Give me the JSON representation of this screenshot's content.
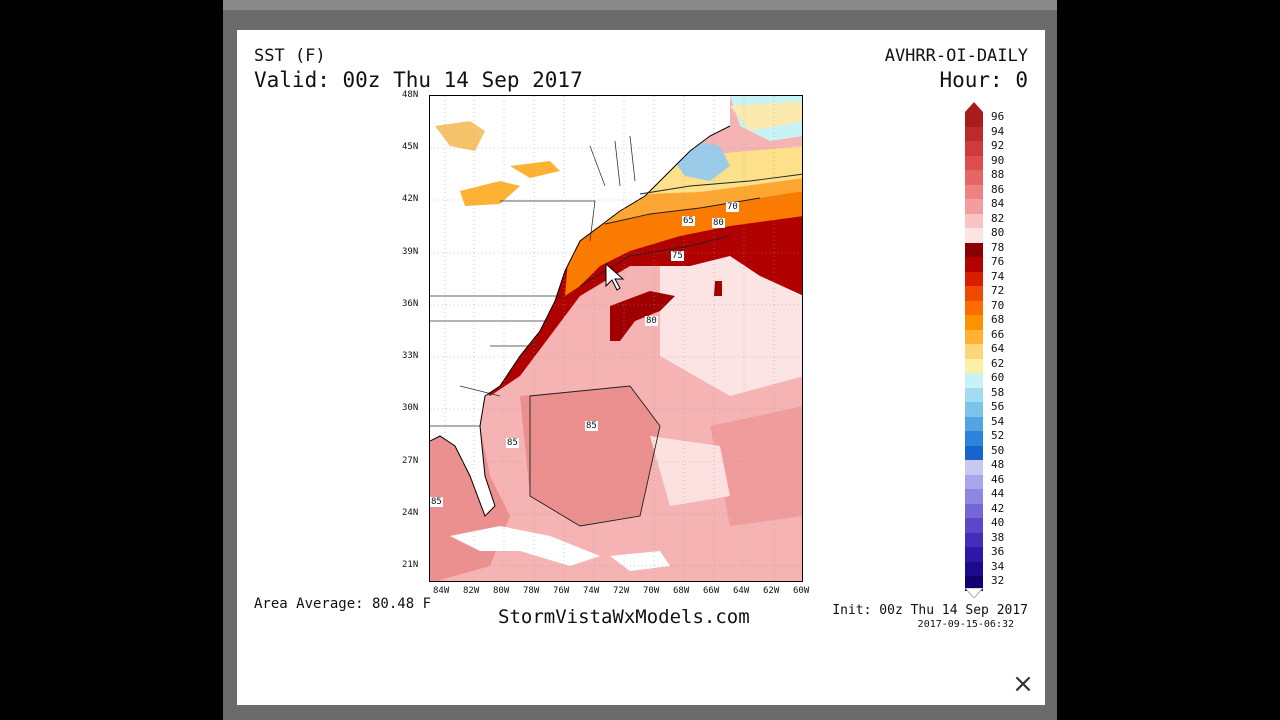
{
  "header": {
    "left_line1": "SST (F)",
    "left_line2": "Valid: 00z Thu 14 Sep 2017",
    "right_line1": "AVHRR-OI-DAILY",
    "right_line2": "Hour: 0"
  },
  "map": {
    "lat_labels": [
      "48N",
      "45N",
      "42N",
      "39N",
      "36N",
      "33N",
      "30N",
      "27N",
      "24N",
      "21N"
    ],
    "lon_labels": [
      "84W",
      "82W",
      "80W",
      "78W",
      "76W",
      "74W",
      "72W",
      "70W",
      "68W",
      "66W",
      "64W",
      "62W",
      "60W"
    ],
    "contour_labels": [
      "70",
      "65",
      "80",
      "75",
      "80",
      "85",
      "85",
      "85"
    ]
  },
  "colorbar": {
    "levels": [
      "96",
      "94",
      "92",
      "90",
      "88",
      "86",
      "84",
      "82",
      "80",
      "78",
      "76",
      "74",
      "72",
      "70",
      "68",
      "66",
      "64",
      "62",
      "60",
      "58",
      "56",
      "54",
      "52",
      "50",
      "48",
      "46",
      "44",
      "42",
      "40",
      "38",
      "36",
      "34",
      "32"
    ],
    "colors": [
      "#a81c1c",
      "#bc2a2a",
      "#cf3b3b",
      "#dd4e4e",
      "#e46666",
      "#ec8282",
      "#f29e9e",
      "#f7c3c3",
      "#fde4e4",
      "#8a0000",
      "#b50000",
      "#d91e00",
      "#f04a00",
      "#fb6d00",
      "#fd9200",
      "#fdb233",
      "#fdd67a",
      "#fbf0a6",
      "#c9f2f5",
      "#a3dcf0",
      "#7cc3ec",
      "#54a4e4",
      "#2d83db",
      "#1665cf",
      "#c8c8f3",
      "#aaa6ec",
      "#8f86e2",
      "#7566d6",
      "#5b48c9",
      "#432dba",
      "#2d17a6",
      "#1c0a8c",
      "#120070"
    ]
  },
  "footer": {
    "area_average": "Area Average: 80.48 F",
    "site": "StormVistaWxModels.com",
    "init": "Init: 00z Thu 14 Sep 2017",
    "timestamp": "2017-09-15-06:32"
  },
  "close_label": "×"
}
